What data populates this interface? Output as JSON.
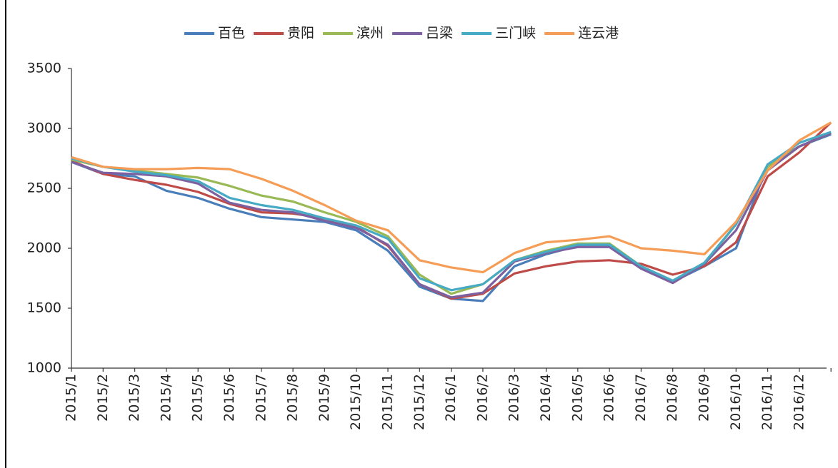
{
  "chart_data": {
    "type": "line",
    "categories": [
      "2015/1",
      "2015/2",
      "2015/3",
      "2015/4",
      "2015/5",
      "2015/6",
      "2015/7",
      "2015/8",
      "2015/9",
      "2015/10",
      "2015/11",
      "2015/12",
      "2016/1",
      "2016/2",
      "2016/3",
      "2016/4",
      "2016/5",
      "2016/6",
      "2016/7",
      "2016/8",
      "2016/9",
      "2016/10",
      "2016/11",
      "2016/12",
      null
    ],
    "series": [
      {
        "name": "百色",
        "color": "#4a7ebb",
        "values": [
          2720,
          2620,
          2600,
          2480,
          2420,
          2330,
          2260,
          2240,
          2220,
          2150,
          1980,
          1680,
          1580,
          1560,
          1850,
          1950,
          2020,
          2020,
          1840,
          1720,
          1850,
          2000,
          2700,
          2850,
          2950
        ]
      },
      {
        "name": "贵阳",
        "color": "#be4b48",
        "values": [
          2730,
          2620,
          2570,
          2530,
          2470,
          2370,
          2300,
          2290,
          2250,
          2180,
          2020,
          1700,
          1580,
          1620,
          1790,
          1850,
          1890,
          1900,
          1870,
          1780,
          1850,
          2050,
          2600,
          2800,
          3050
        ]
      },
      {
        "name": "滨州",
        "color": "#98b954",
        "values": [
          2740,
          2680,
          2650,
          2620,
          2590,
          2520,
          2440,
          2390,
          2300,
          2220,
          2100,
          1780,
          1620,
          1700,
          1900,
          1980,
          2040,
          2040,
          1850,
          1730,
          1870,
          2200,
          2680,
          2850,
          2960
        ]
      },
      {
        "name": "吕梁",
        "color": "#7d60a0",
        "values": [
          2720,
          2630,
          2620,
          2600,
          2540,
          2380,
          2320,
          2300,
          2230,
          2170,
          2030,
          1700,
          1590,
          1630,
          1890,
          1960,
          2010,
          2010,
          1830,
          1710,
          1870,
          2150,
          2650,
          2850,
          2960
        ]
      },
      {
        "name": "三门峡",
        "color": "#46aac5",
        "values": [
          2750,
          2680,
          2640,
          2610,
          2560,
          2420,
          2360,
          2320,
          2250,
          2190,
          2080,
          1750,
          1650,
          1700,
          1900,
          1970,
          2030,
          2030,
          1850,
          1730,
          1880,
          2200,
          2700,
          2880,
          2970
        ]
      },
      {
        "name": "连云港",
        "color": "#f59d56",
        "values": [
          2760,
          2680,
          2660,
          2660,
          2670,
          2660,
          2580,
          2480,
          2360,
          2230,
          2150,
          1900,
          1840,
          1800,
          1960,
          2050,
          2070,
          2100,
          2000,
          1980,
          1950,
          2220,
          2650,
          2900,
          3050
        ]
      }
    ],
    "ylim": [
      1000,
      3500
    ],
    "yticks": [
      1000,
      1500,
      2000,
      2500,
      3000,
      3500
    ]
  }
}
